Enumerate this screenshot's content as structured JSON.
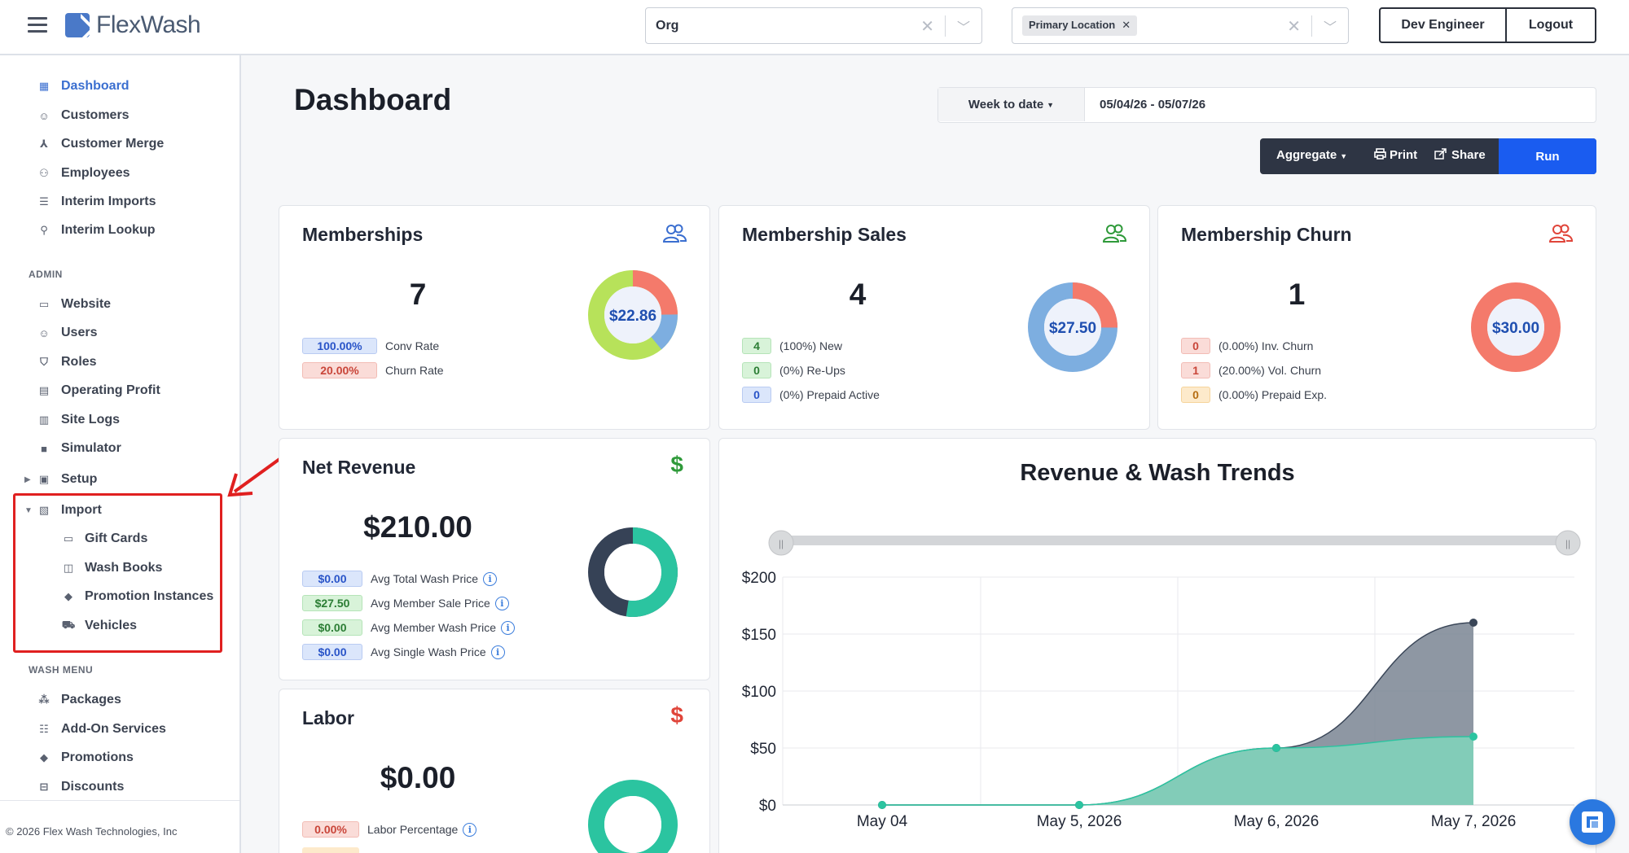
{
  "app": {
    "name": "FlexWash"
  },
  "topbar": {
    "org_select": {
      "value": "Org"
    },
    "location_select": {
      "chip": "Primary Location"
    },
    "user_button": "Dev Engineer",
    "logout_button": "Logout"
  },
  "sidebar": {
    "main_items": [
      {
        "label": "Dashboard",
        "icon": "dashboard-icon",
        "active": true
      },
      {
        "label": "Customers",
        "icon": "users-icon"
      },
      {
        "label": "Customer Merge",
        "icon": "merge-icon"
      },
      {
        "label": "Employees",
        "icon": "employees-icon"
      },
      {
        "label": "Interim Imports",
        "icon": "database-icon"
      },
      {
        "label": "Interim Lookup",
        "icon": "user-search-icon"
      }
    ],
    "admin_header": "ADMIN",
    "admin_items": [
      {
        "label": "Website",
        "icon": "browser-icon"
      },
      {
        "label": "Users",
        "icon": "users-icon"
      },
      {
        "label": "Roles",
        "icon": "shield-icon"
      },
      {
        "label": "Operating Profit",
        "icon": "calculator-icon"
      },
      {
        "label": "Site Logs",
        "icon": "clipboard-icon"
      },
      {
        "label": "Simulator",
        "icon": "book-icon"
      },
      {
        "label": "Setup",
        "icon": "newspaper-icon"
      },
      {
        "label": "Import",
        "icon": "file-import-icon"
      }
    ],
    "import_children": [
      {
        "label": "Gift Cards",
        "icon": "gift-card-icon"
      },
      {
        "label": "Wash Books",
        "icon": "open-book-icon"
      },
      {
        "label": "Promotion Instances",
        "icon": "tag-icon"
      },
      {
        "label": "Vehicles",
        "icon": "car-icon"
      }
    ],
    "wash_header": "WASH MENU",
    "wash_items": [
      {
        "label": "Packages",
        "icon": "cubes-icon"
      },
      {
        "label": "Add-On Services",
        "icon": "list-icon"
      },
      {
        "label": "Promotions",
        "icon": "tag-icon"
      },
      {
        "label": "Discounts",
        "icon": "receipt-icon"
      }
    ],
    "footer": "© 2026 Flex Wash Technologies, Inc"
  },
  "page": {
    "title": "Dashboard",
    "date_range_button": "Week to date",
    "date_value": "05/04/26 - 05/07/26",
    "toolbar": {
      "aggregate": "Aggregate",
      "print": "Print",
      "share": "Share",
      "run": "Run"
    }
  },
  "cards": {
    "memberships": {
      "title": "Memberships",
      "value": "7",
      "donut_label": "$22.86",
      "stats": [
        {
          "badge": "100.00%",
          "label": "Conv Rate",
          "color": "blue"
        },
        {
          "badge": "20.00%",
          "label": "Churn Rate",
          "color": "red"
        }
      ]
    },
    "membership_sales": {
      "title": "Membership Sales",
      "value": "4",
      "donut_label": "$27.50",
      "stats": [
        {
          "badge": "4",
          "label": "(100%) New",
          "color": "green"
        },
        {
          "badge": "0",
          "label": "(0%) Re-Ups",
          "color": "green"
        },
        {
          "badge": "0",
          "label": "(0%) Prepaid Active",
          "color": "blue"
        }
      ]
    },
    "membership_churn": {
      "title": "Membership Churn",
      "value": "1",
      "donut_label": "$30.00",
      "stats": [
        {
          "badge": "0",
          "label": "(0.00%) Inv. Churn",
          "color": "red"
        },
        {
          "badge": "1",
          "label": "(20.00%) Vol. Churn",
          "color": "red"
        },
        {
          "badge": "0",
          "label": "(0.00%) Prepaid Exp.",
          "color": "orange"
        }
      ]
    },
    "net_revenue": {
      "title": "Net Revenue",
      "value": "$210.00",
      "stats": [
        {
          "badge": "$0.00",
          "label": "Avg Total Wash Price",
          "color": "blue"
        },
        {
          "badge": "$27.50",
          "label": "Avg Member Sale Price",
          "color": "green"
        },
        {
          "badge": "$0.00",
          "label": "Avg Member Wash Price",
          "color": "green"
        },
        {
          "badge": "$0.00",
          "label": "Avg Single Wash Price",
          "color": "blue"
        }
      ]
    },
    "labor": {
      "title": "Labor",
      "value": "$0.00",
      "stats": [
        {
          "badge": "0.00%",
          "label": "Labor Percentage",
          "color": "red"
        }
      ]
    }
  },
  "chart_data": {
    "type": "area",
    "title": "Revenue & Wash Trends",
    "categories": [
      "May 04",
      "May 5, 2026",
      "May 6, 2026",
      "May 7, 2026"
    ],
    "ylim": [
      0,
      200
    ],
    "yticks": [
      "$0",
      "$50",
      "$100",
      "$150",
      "$200"
    ],
    "grid": true,
    "series": [
      {
        "values": [
          0,
          0,
          50,
          160
        ],
        "color": "#7a8593"
      },
      {
        "values": [
          0,
          0,
          50,
          60
        ],
        "color": "#7fd9bd"
      }
    ]
  },
  "colors": {
    "accent": "#1a5cf0",
    "active_nav": "#3b6fd0",
    "highlight": "#e02020"
  }
}
